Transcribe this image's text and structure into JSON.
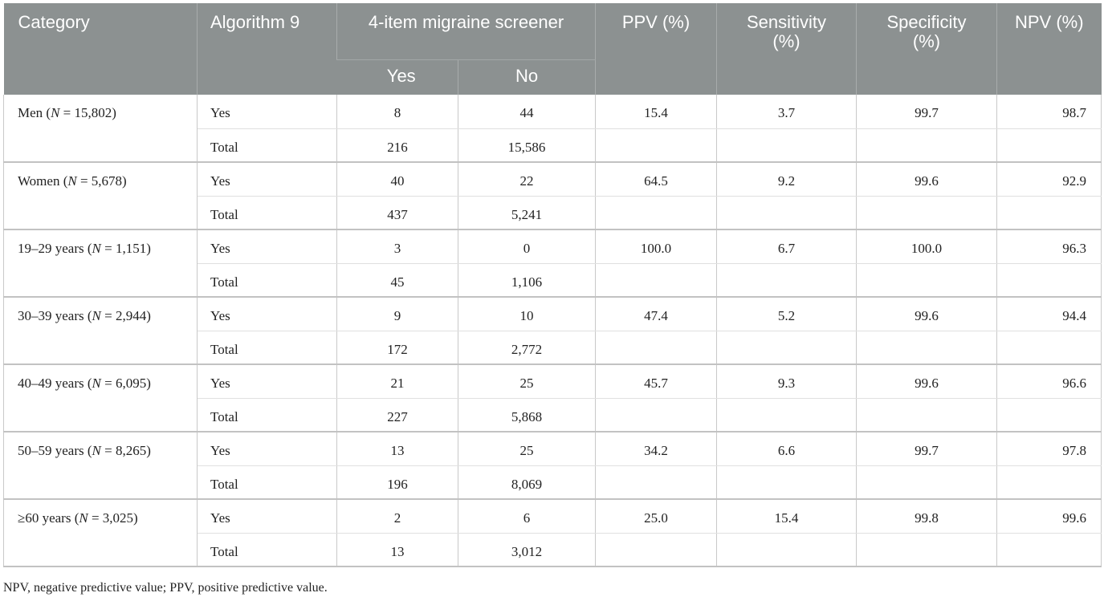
{
  "header": {
    "category": "Category",
    "algorithm": "Algorithm 9",
    "screener": "4-item migraine screener",
    "yes": "Yes",
    "no": "No",
    "ppv": "PPV (%)",
    "sensitivity_1": "Sensitivity",
    "sensitivity_2": "(%)",
    "specificity_1": "Specificity",
    "specificity_2": "(%)",
    "npv": "NPV (%)"
  },
  "groups": [
    {
      "cat_prefix": "Men (",
      "cat_n": "N",
      "cat_suffix": " = 15,802)",
      "rows": [
        {
          "alg": "Yes",
          "yes": "8",
          "no": "44",
          "ppv": "15.4",
          "sens": "3.7",
          "spec": "99.7",
          "npv": "98.7"
        },
        {
          "alg": "Total",
          "yes": "216",
          "no": "15,586",
          "ppv": "",
          "sens": "",
          "spec": "",
          "npv": ""
        }
      ]
    },
    {
      "cat_prefix": "Women (",
      "cat_n": "N",
      "cat_suffix": " = 5,678)",
      "rows": [
        {
          "alg": "Yes",
          "yes": "40",
          "no": "22",
          "ppv": "64.5",
          "sens": "9.2",
          "spec": "99.6",
          "npv": "92.9"
        },
        {
          "alg": "Total",
          "yes": "437",
          "no": "5,241",
          "ppv": "",
          "sens": "",
          "spec": "",
          "npv": ""
        }
      ]
    },
    {
      "cat_prefix": "19–29 years (",
      "cat_n": "N",
      "cat_suffix": " = 1,151)",
      "rows": [
        {
          "alg": "Yes",
          "yes": "3",
          "no": "0",
          "ppv": "100.0",
          "sens": "6.7",
          "spec": "100.0",
          "npv": "96.3"
        },
        {
          "alg": "Total",
          "yes": "45",
          "no": "1,106",
          "ppv": "",
          "sens": "",
          "spec": "",
          "npv": ""
        }
      ]
    },
    {
      "cat_prefix": "30–39 years (",
      "cat_n": "N",
      "cat_suffix": " = 2,944)",
      "rows": [
        {
          "alg": "Yes",
          "yes": "9",
          "no": "10",
          "ppv": "47.4",
          "sens": "5.2",
          "spec": "99.6",
          "npv": "94.4"
        },
        {
          "alg": "Total",
          "yes": "172",
          "no": "2,772",
          "ppv": "",
          "sens": "",
          "spec": "",
          "npv": ""
        }
      ]
    },
    {
      "cat_prefix": "40–49 years (",
      "cat_n": "N",
      "cat_suffix": " = 6,095)",
      "rows": [
        {
          "alg": "Yes",
          "yes": "21",
          "no": "25",
          "ppv": "45.7",
          "sens": "9.3",
          "spec": "99.6",
          "npv": "96.6"
        },
        {
          "alg": "Total",
          "yes": "227",
          "no": "5,868",
          "ppv": "",
          "sens": "",
          "spec": "",
          "npv": ""
        }
      ]
    },
    {
      "cat_prefix": "50–59 years (",
      "cat_n": "N",
      "cat_suffix": " = 8,265)",
      "rows": [
        {
          "alg": "Yes",
          "yes": "13",
          "no": "25",
          "ppv": "34.2",
          "sens": "6.6",
          "spec": "99.7",
          "npv": "97.8"
        },
        {
          "alg": "Total",
          "yes": "196",
          "no": "8,069",
          "ppv": "",
          "sens": "",
          "spec": "",
          "npv": ""
        }
      ]
    },
    {
      "cat_prefix": "≥60 years (",
      "cat_n": "N",
      "cat_suffix": " = 3,025)",
      "rows": [
        {
          "alg": "Yes",
          "yes": "2",
          "no": "6",
          "ppv": "25.0",
          "sens": "15.4",
          "spec": "99.8",
          "npv": "99.6"
        },
        {
          "alg": "Total",
          "yes": "13",
          "no": "3,012",
          "ppv": "",
          "sens": "",
          "spec": "",
          "npv": ""
        }
      ]
    }
  ],
  "footnote": "NPV, negative predictive value; PPV, positive predictive value."
}
